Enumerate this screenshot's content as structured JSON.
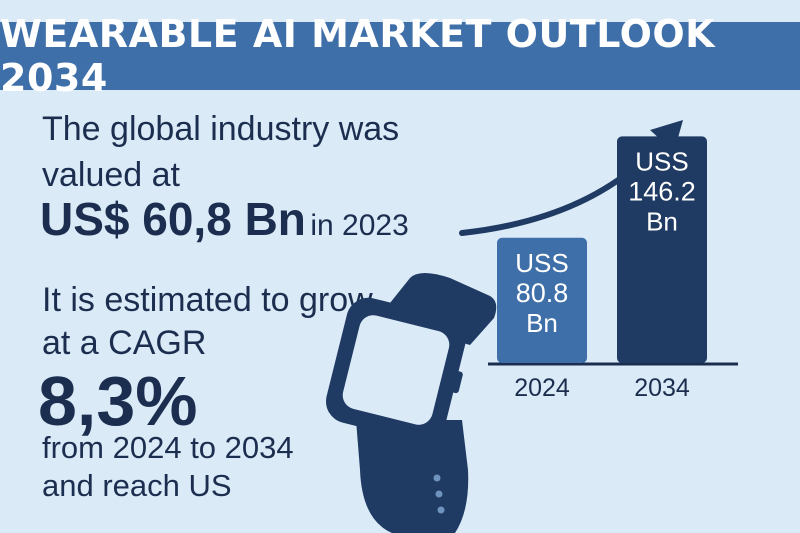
{
  "header": {
    "title": "WEARABLE AI MARKET OUTLOOK 2034"
  },
  "text": {
    "line1": "The global industry was",
    "line2": "valued at",
    "value_2023": "US$ 60,8 Bn",
    "year_suffix": "in 2023",
    "line4": "It is estimated to grow",
    "line5": "at a CAGR",
    "cagr": "8,3%",
    "line7": "from 2024 to 2034",
    "line8": "and reach US"
  },
  "icons": {
    "watch": "smartwatch-icon",
    "arrow": "trend-arrow-icon"
  },
  "colors": {
    "background": "#dbeaf7",
    "banner": "#3f6fa8",
    "bar_2024": "#3f6fa8",
    "bar_2034": "#1f3b63",
    "text": "#1b2e4f"
  },
  "chart_data": {
    "type": "bar",
    "categories": [
      "2024",
      "2034"
    ],
    "values": [
      80.8,
      146.2
    ],
    "value_labels": [
      [
        "USS",
        "80.8",
        "Bn"
      ],
      [
        "USS",
        "146.2",
        "Bn"
      ]
    ],
    "ylim": [
      0,
      160
    ],
    "grid": false
  }
}
